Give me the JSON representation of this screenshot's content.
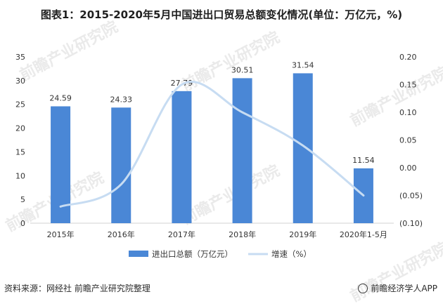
{
  "title": "图表1：2015-2020年5月中国进出口贸易总额变化情况(单位：万亿元，%)",
  "source": "资料来源：网经社 前瞻产业研究院整理",
  "brand": "前瞻经济学人APP",
  "watermark": "前瞻产业研究院",
  "colors": {
    "bar": "#4a87d6",
    "line": "#c7dcf2",
    "axis_text": "#333333"
  },
  "chart_data": {
    "type": "bar",
    "categories": [
      "2015年",
      "2016年",
      "2017年",
      "2018年",
      "2019年",
      "2020年1-5月"
    ],
    "series": [
      {
        "name": "进出口总额（万亿元）",
        "type": "bar",
        "axis": "left",
        "values": [
          24.59,
          24.33,
          27.79,
          30.51,
          31.54,
          11.54
        ]
      },
      {
        "name": "增速（%）",
        "type": "line",
        "axis": "right",
        "values": [
          -0.07,
          -0.03,
          0.15,
          0.1,
          0.04,
          -0.05
        ]
      }
    ],
    "data_labels": [
      "24.59",
      "24.33",
      "27.79",
      "30.51",
      "31.54",
      "11.54"
    ],
    "y_left": {
      "min": 0,
      "max": 35,
      "ticks": [
        "0",
        "5",
        "10",
        "15",
        "20",
        "25",
        "30",
        "35"
      ]
    },
    "y_right": {
      "min": -0.1,
      "max": 0.2,
      "ticks": [
        "(0.10)",
        "(0.05)",
        "0.00",
        "0.05",
        "0.10",
        "0.15",
        "0.20"
      ]
    },
    "legend": [
      "进出口总额（万亿元）",
      "增速（%）"
    ]
  }
}
